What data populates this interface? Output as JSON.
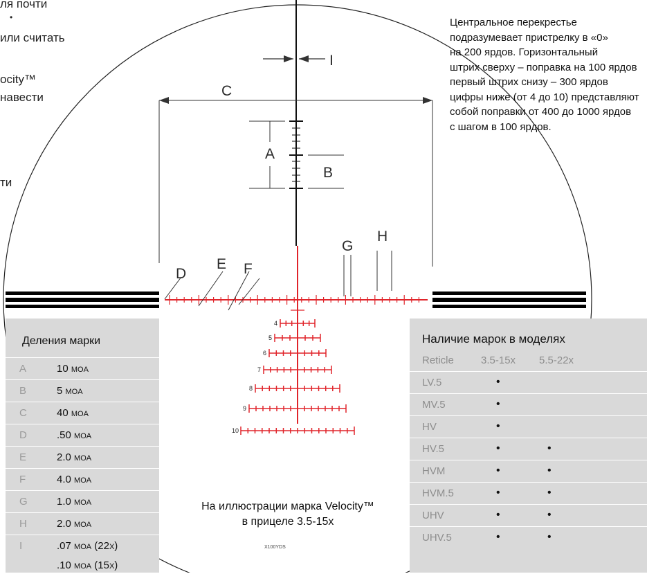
{
  "fragments": [
    "ля почти",
    "•",
    "или считать",
    "ocity™",
    "навести",
    "ти"
  ],
  "note_lines": [
    "Центральное перекрестье",
    "подразумевает пристрелку в «0»",
    "на 200 ярдов. Горизонтальный",
    "штрих сверху – поправка на 100 ярдов",
    "первый штрих снизу – 300 ярдов",
    "цифры ниже (от 4 до 10) представляют",
    "собой поправки от 400 до 1000 ярдов",
    "с шагом в 100 ярдов."
  ],
  "diagram_labels": {
    "A": "A",
    "B": "B",
    "C": "C",
    "D": "D",
    "E": "E",
    "F": "F",
    "G": "G",
    "H": "H",
    "I": "I"
  },
  "holdover_numbers": [
    "4",
    "5",
    "6",
    "7",
    "8",
    "9",
    "10"
  ],
  "colors": {
    "reticle_red": "#e0242a",
    "reticle_black": "#111111",
    "panel_gray": "#d9d9d9"
  },
  "divisions": {
    "title": "Деления марки",
    "rows": [
      {
        "letter": "A",
        "value": "10",
        "unit": "MOA"
      },
      {
        "letter": "B",
        "value": "5",
        "unit": "MOA"
      },
      {
        "letter": "C",
        "value": "40",
        "unit": "MOA"
      },
      {
        "letter": "D",
        "value": ".50",
        "unit": "MOA"
      },
      {
        "letter": "E",
        "value": "2.0",
        "unit": "MOA"
      },
      {
        "letter": "F",
        "value": "4.0",
        "unit": "MOA"
      },
      {
        "letter": "G",
        "value": "1.0",
        "unit": "MOA"
      },
      {
        "letter": "H",
        "value": "2.0",
        "unit": "MOA"
      },
      {
        "letter": "I",
        "value": ".07",
        "unit": "MOA",
        "suffix": "(22",
        "suffix_unit": "X",
        "suffix_end": ")",
        "value2": ".10",
        "unit2": "MOA",
        "suffix2": "(15",
        "suffix2_unit": "X",
        "suffix2_end": ")"
      }
    ]
  },
  "availability": {
    "title": "Наличие марок в моделях",
    "headers": [
      "Reticle",
      "3.5-15x",
      "5.5-22x"
    ],
    "rows": [
      {
        "name": "LV.5",
        "a": "•",
        "b": ""
      },
      {
        "name": "MV.5",
        "a": "•",
        "b": ""
      },
      {
        "name": "HV",
        "a": "•",
        "b": ""
      },
      {
        "name": "HV.5",
        "a": "•",
        "b": "•"
      },
      {
        "name": "HVM",
        "a": "•",
        "b": "•"
      },
      {
        "name": "HVM.5",
        "a": "•",
        "b": "•"
      },
      {
        "name": "UHV",
        "a": "•",
        "b": "•"
      },
      {
        "name": "UHV.5",
        "a": "•",
        "b": "•"
      }
    ]
  },
  "caption": [
    "На иллюстрации марка Velocity™",
    "в прицеле 3.5-15x"
  ],
  "small_label": "X100YDS"
}
